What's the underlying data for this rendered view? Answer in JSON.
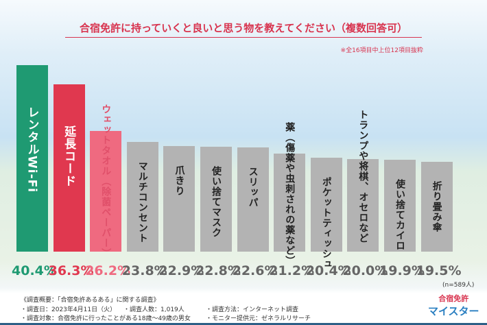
{
  "chart_data": {
    "type": "bar",
    "title": "合宿免許に持っていくと良いと思う物を教えてください（複数回答可）",
    "note": "※全16項目中上位12項目抜粋",
    "unit": "%",
    "categories": [
      "レンタルWi-Fi",
      "延長コード",
      "ウェットタオル（除菌ペーパー）",
      "マルチコンセント",
      "爪きり",
      "使い捨てマスク",
      "スリッパ",
      "薬（傷薬や虫刺されの薬など）",
      "ポケットティッシュ",
      "トランプや将棋、オセロなど",
      "使い捨てカイロ",
      "折り畳み傘"
    ],
    "values": [
      40.4,
      36.3,
      26.2,
      23.8,
      22.9,
      22.8,
      22.6,
      21.2,
      20.4,
      20.0,
      19.9,
      19.5
    ],
    "value_labels": [
      "40.4%",
      "36.3%",
      "26.2%",
      "23.8%",
      "22.9%",
      "22.8%",
      "22.6%",
      "21.2%",
      "20.4%",
      "20.0%",
      "19.9%",
      "19.5%"
    ],
    "colors": [
      "#1f9a72",
      "#e0384f",
      "#ef6a80",
      "#b3b3b3",
      "#b3b3b3",
      "#b3b3b3",
      "#b3b3b3",
      "#b3b3b3",
      "#b3b3b3",
      "#b3b3b3",
      "#b3b3b3",
      "#b3b3b3"
    ],
    "value_colors": [
      "#1f9a72",
      "#e0384f",
      "#ef6a80",
      "#666",
      "#666",
      "#666",
      "#666",
      "#666",
      "#666",
      "#666",
      "#666",
      "#666"
    ],
    "sample": "(n=589人)"
  },
  "footer": {
    "heading": "《調査概要：「合宿免許あるある」に関する調査》",
    "date": "・調査日：2023年4月11日（火）",
    "count": "・調査人数：1,019人",
    "method": "・調査方法：インターネット調査",
    "target": "・調査対象：合宿免許に行ったことがある18歳～49歳の男女",
    "provider": "・モニター提供元：ゼネラルリサーチ"
  },
  "logo": {
    "line1": "合宿免許",
    "line2": "マイスター"
  }
}
